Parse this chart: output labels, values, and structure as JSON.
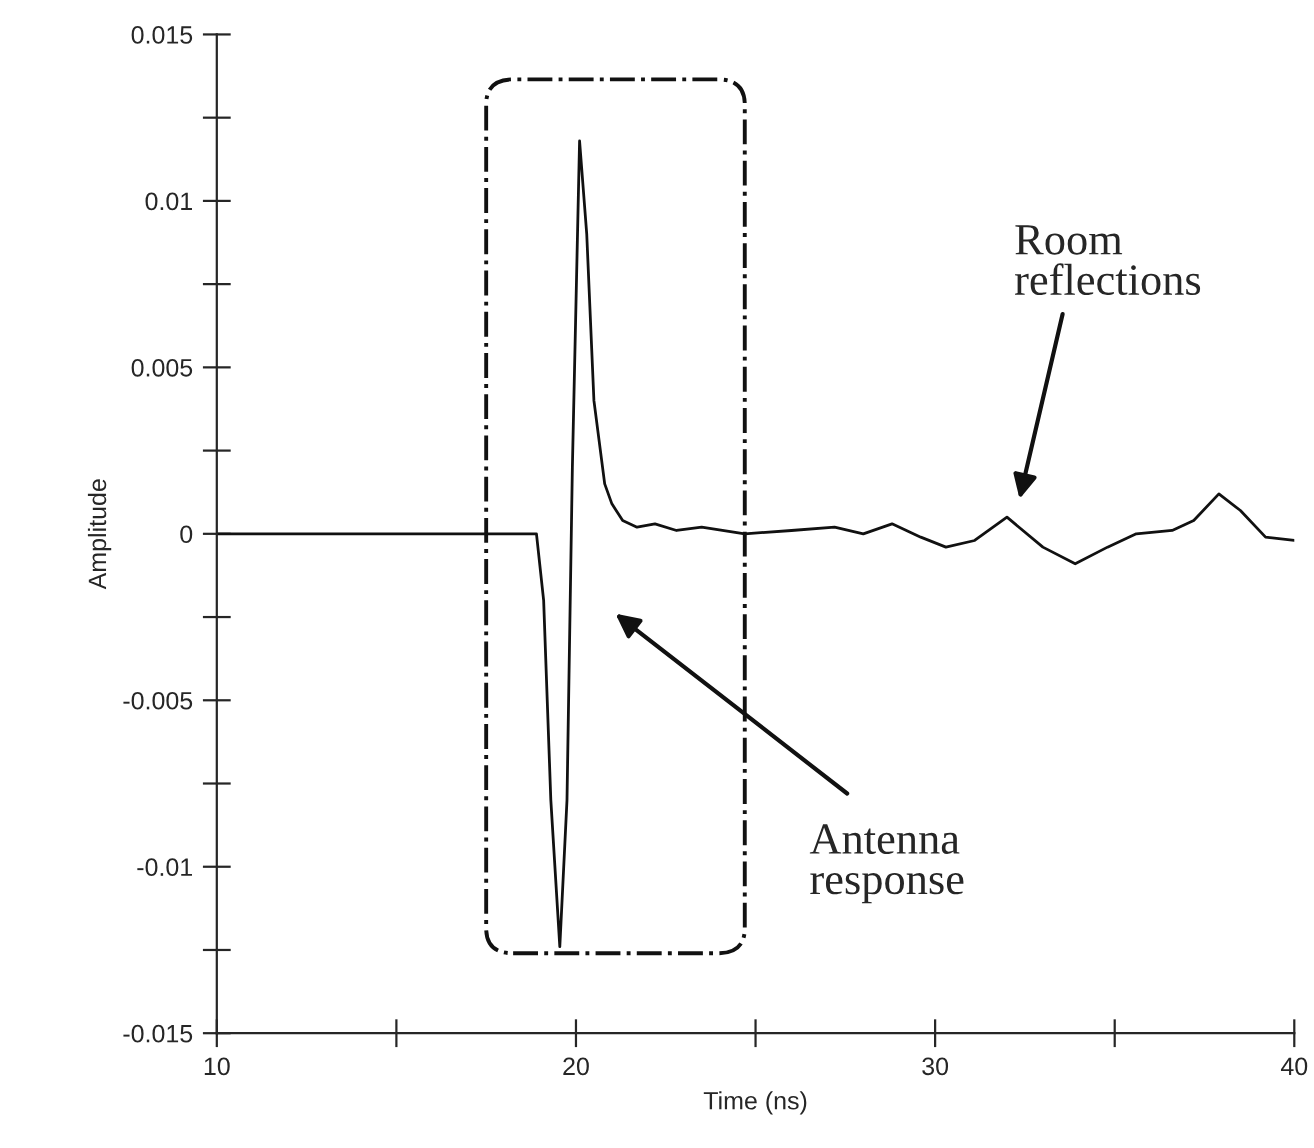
{
  "chart_data": {
    "type": "line",
    "xlabel": "Time (ns)",
    "ylabel": "Amplitude",
    "x": [
      10,
      12,
      14,
      16,
      18,
      18.9,
      19.1,
      19.3,
      19.55,
      19.75,
      19.9,
      20.1,
      20.3,
      20.5,
      20.8,
      21.0,
      21.3,
      21.7,
      22.2,
      22.8,
      23.5,
      24.7,
      26,
      27.2,
      28,
      28.8,
      29.6,
      30.3,
      31.1,
      32.0,
      33.0,
      33.9,
      34.8,
      35.6,
      36.6,
      37.2,
      37.9,
      38.5,
      39.2,
      40
    ],
    "series": [
      {
        "color": "#111111",
        "values": [
          0,
          0,
          0,
          0,
          0,
          0,
          -0.002,
          -0.008,
          -0.0124,
          -0.008,
          0.002,
          0.0118,
          0.009,
          0.004,
          0.0015,
          0.0009,
          0.0004,
          0.0002,
          0.0003,
          0.0001,
          0.0002,
          0,
          0.0001,
          0.0002,
          0,
          0.0003,
          -0.0001,
          -0.0004,
          -0.0002,
          0.0005,
          -0.0004,
          -0.0009,
          -0.0004,
          0,
          0.0001,
          0.0004,
          0.0012,
          0.0007,
          -0.0001,
          -0.0002
        ]
      }
    ],
    "xlim": [
      10,
      40
    ],
    "ylim": [
      -0.015,
      0.015
    ],
    "xticks": [
      10,
      {
        "value": 15,
        "label": null
      },
      20,
      {
        "value": 25,
        "label": null
      },
      30,
      {
        "value": 35,
        "label": null
      },
      40
    ],
    "yticks": [
      -0.015,
      {
        "value": -0.0125,
        "label": null
      },
      -0.01,
      {
        "value": -0.0075,
        "label": null
      },
      -0.005,
      {
        "value": -0.0025,
        "label": null
      },
      0,
      {
        "value": 0.0025,
        "label": null
      },
      0.005,
      {
        "value": 0.0075,
        "label": null
      },
      0.01,
      {
        "value": 0.0125,
        "label": null
      },
      0.015
    ],
    "annotations": [
      "Antenna response",
      "Room reflections"
    ],
    "grid": false,
    "marker": "none",
    "line_style": "solid"
  }
}
